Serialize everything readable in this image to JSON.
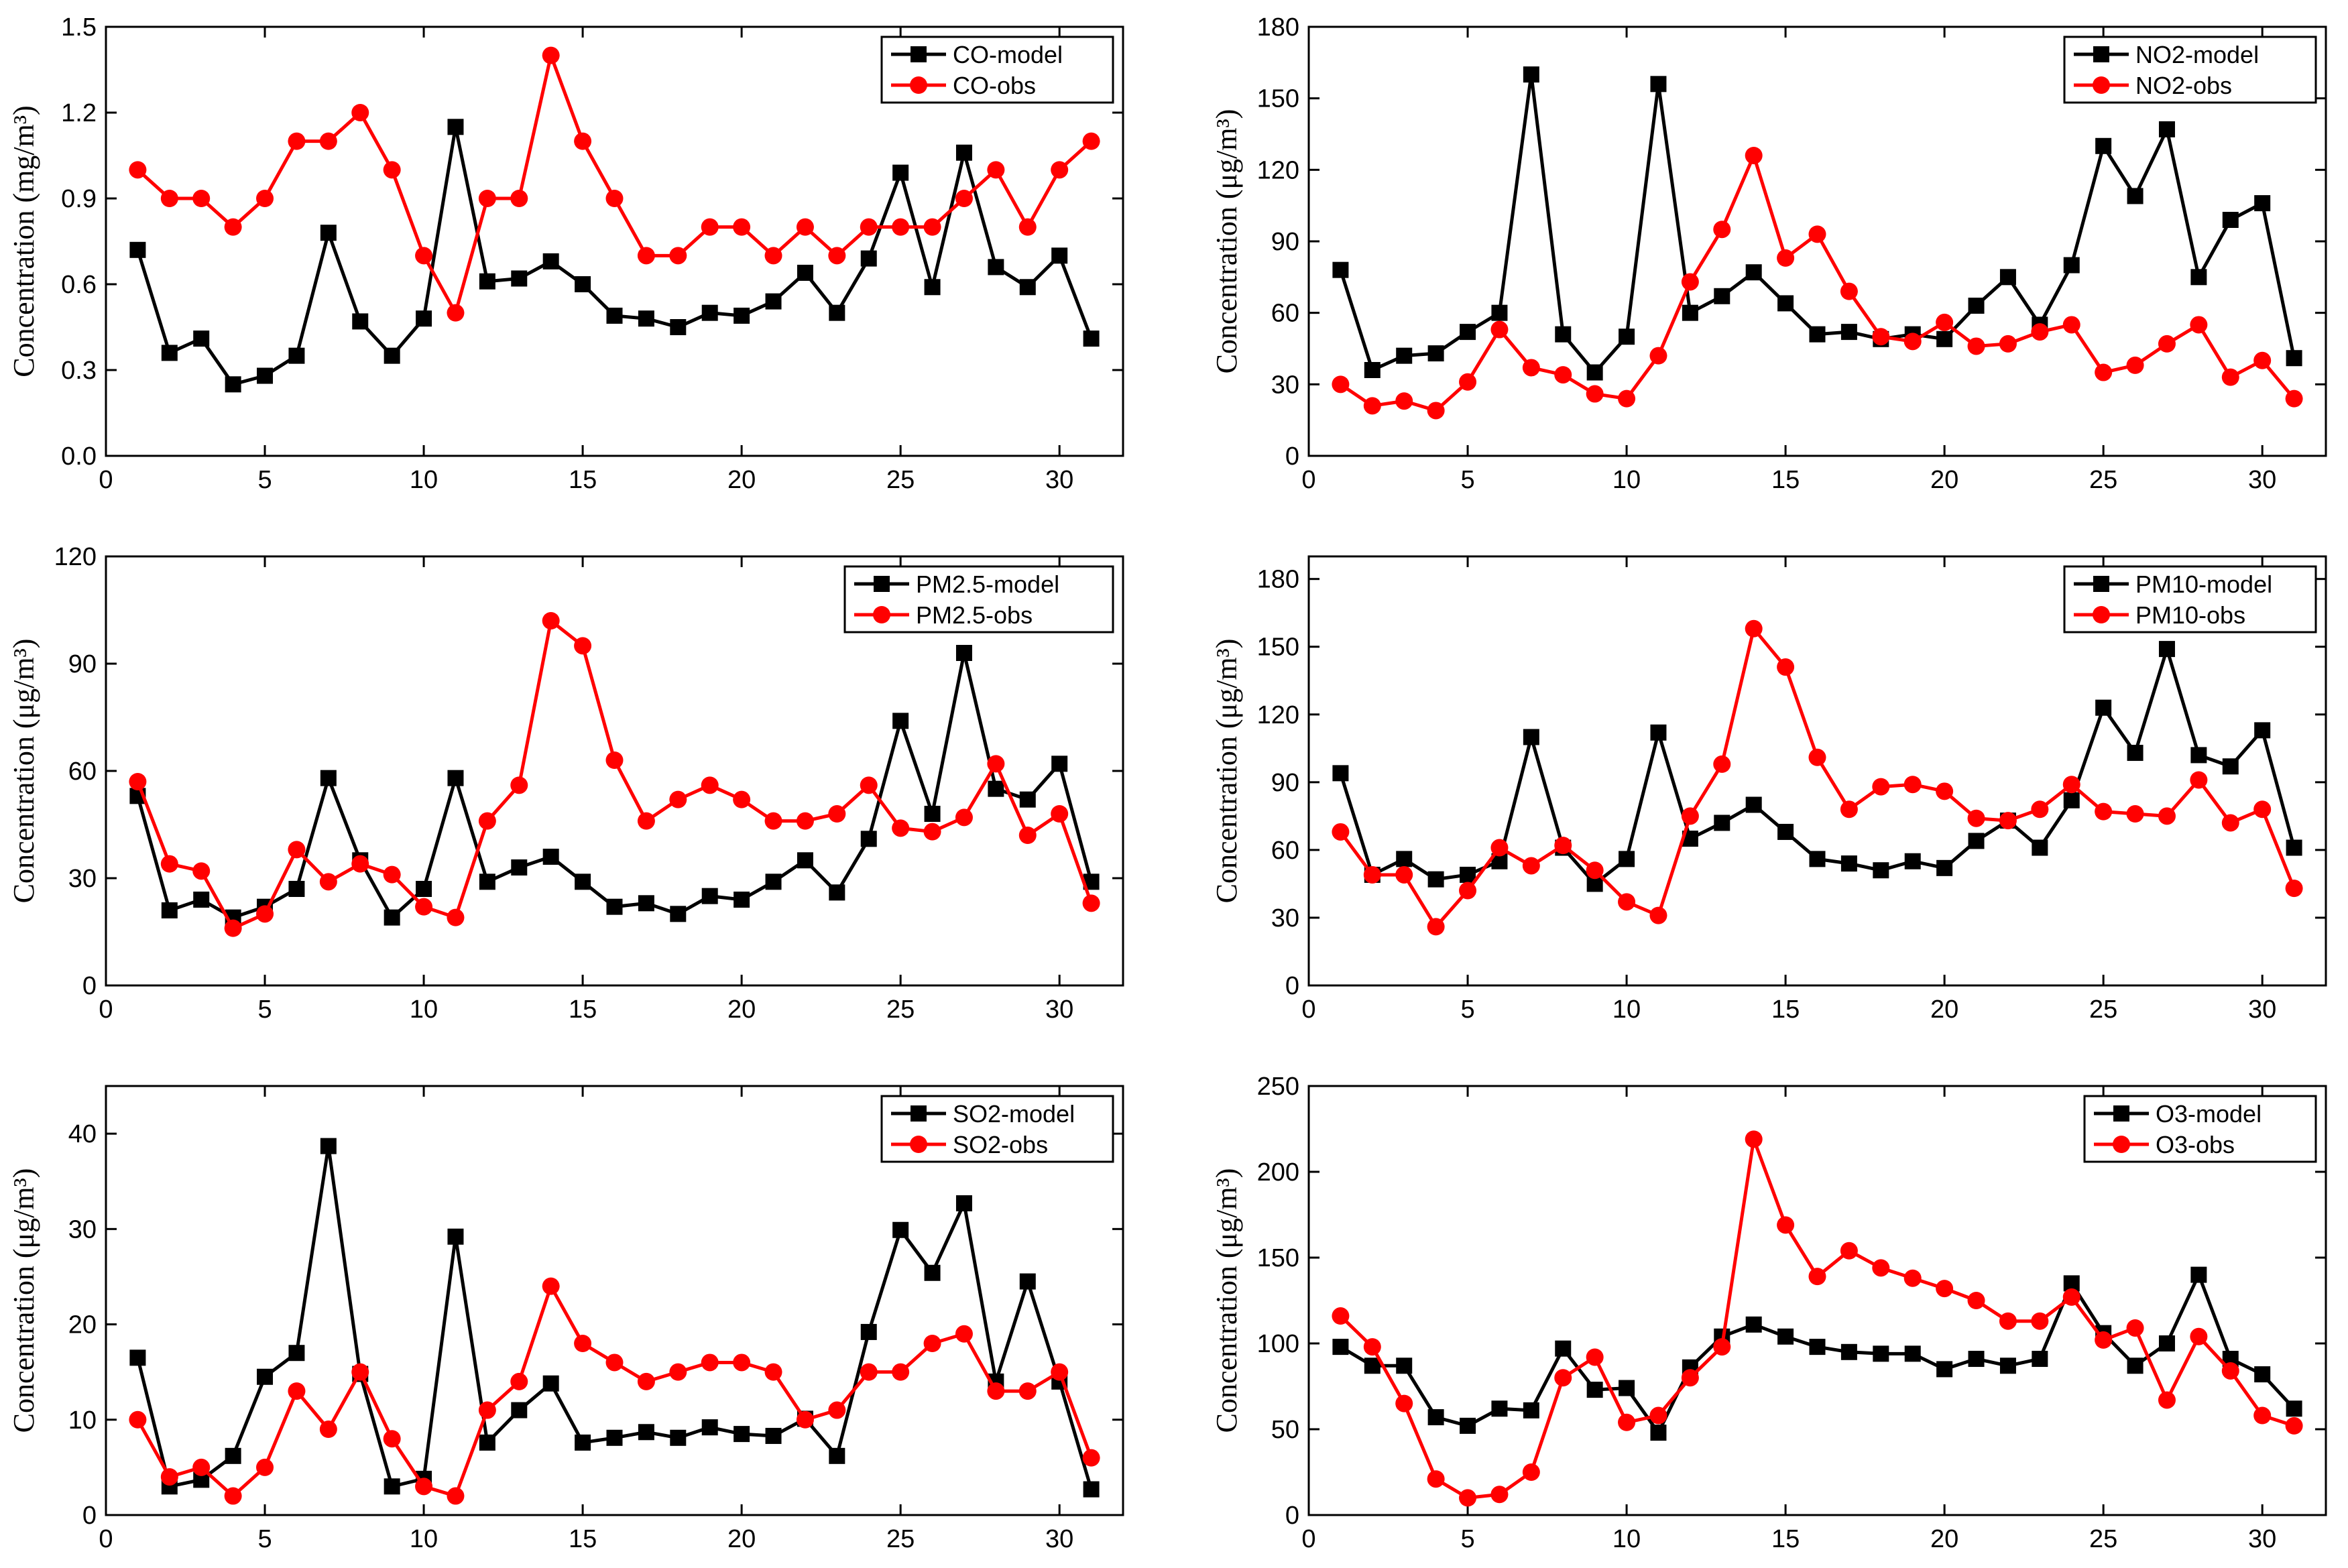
{
  "colors": {
    "model": "#000000",
    "obs": "#ff0000"
  },
  "chart_data": [
    {
      "type": "line",
      "ylabel": "Concentration (mg/m³)",
      "xlim": [
        0,
        32
      ],
      "ylim": [
        0,
        1.5
      ],
      "xticks": [
        0,
        5,
        10,
        15,
        20,
        25,
        30
      ],
      "xtick_labels": [
        "0",
        "5",
        "10",
        "15",
        "20",
        "25",
        "30"
      ],
      "yticks": [
        0,
        0.3,
        0.6,
        0.9,
        1.2,
        1.5
      ],
      "ytick_labels": [
        "0.0",
        "0.3",
        "0.6",
        "0.9",
        "1.2",
        "1.5"
      ],
      "legend": "top-right",
      "x": [
        1,
        2,
        3,
        4,
        5,
        6,
        7,
        8,
        9,
        10,
        11,
        12,
        13,
        14,
        15,
        16,
        17,
        18,
        19,
        20,
        21,
        22,
        23,
        24,
        25,
        26,
        27,
        28,
        29,
        30,
        31
      ],
      "series": [
        {
          "name": "CO-model",
          "marker": "square",
          "values": [
            0.72,
            0.36,
            0.41,
            0.25,
            0.28,
            0.35,
            0.78,
            0.47,
            0.35,
            0.48,
            1.15,
            0.61,
            0.62,
            0.68,
            0.6,
            0.49,
            0.48,
            0.45,
            0.5,
            0.49,
            0.54,
            0.64,
            0.5,
            0.69,
            0.99,
            0.59,
            1.06,
            0.66,
            0.59,
            0.7,
            0.41
          ]
        },
        {
          "name": "CO-obs",
          "marker": "circle",
          "values": [
            1.0,
            0.9,
            0.9,
            0.8,
            0.9,
            1.1,
            1.1,
            1.2,
            1.0,
            0.7,
            0.5,
            0.9,
            0.9,
            1.4,
            1.1,
            0.9,
            0.7,
            0.7,
            0.8,
            0.8,
            0.7,
            0.8,
            0.7,
            0.8,
            0.8,
            0.8,
            0.9,
            1.0,
            0.8,
            1.0,
            1.1
          ]
        }
      ]
    },
    {
      "type": "line",
      "ylabel": "Concentration (μg/m³)",
      "xlim": [
        0,
        32
      ],
      "ylim": [
        0,
        180
      ],
      "xticks": [
        0,
        5,
        10,
        15,
        20,
        25,
        30
      ],
      "xtick_labels": [
        "0",
        "5",
        "10",
        "15",
        "20",
        "25",
        "30"
      ],
      "yticks": [
        0,
        30,
        60,
        90,
        120,
        150,
        180
      ],
      "ytick_labels": [
        "0",
        "30",
        "60",
        "90",
        "120",
        "150",
        "180"
      ],
      "legend": "top-right",
      "x": [
        1,
        2,
        3,
        4,
        5,
        6,
        7,
        8,
        9,
        10,
        11,
        12,
        13,
        14,
        15,
        16,
        17,
        18,
        19,
        20,
        21,
        22,
        23,
        24,
        25,
        26,
        27,
        28,
        29,
        30,
        31
      ],
      "series": [
        {
          "name": "NO2-model",
          "marker": "square",
          "values": [
            78,
            36,
            42,
            43,
            52,
            60,
            160,
            51,
            35,
            50,
            156,
            60,
            67,
            77,
            64,
            51,
            52,
            49,
            51,
            49,
            63,
            75,
            55,
            80,
            130,
            109,
            137,
            75,
            99,
            106,
            41
          ]
        },
        {
          "name": "NO2-obs",
          "marker": "circle",
          "values": [
            30,
            21,
            23,
            19,
            31,
            53,
            37,
            34,
            26,
            24,
            42,
            73,
            95,
            126,
            83,
            93,
            69,
            50,
            48,
            56,
            46,
            47,
            52,
            55,
            35,
            38,
            47,
            55,
            33,
            40,
            24
          ]
        }
      ]
    },
    {
      "type": "line",
      "ylabel": "Concentration (μg/m³)",
      "xlim": [
        0,
        32
      ],
      "ylim": [
        0,
        120
      ],
      "xticks": [
        0,
        5,
        10,
        15,
        20,
        25,
        30
      ],
      "xtick_labels": [
        "0",
        "5",
        "10",
        "15",
        "20",
        "25",
        "30"
      ],
      "yticks": [
        0,
        30,
        60,
        90,
        120
      ],
      "ytick_labels": [
        "0",
        "30",
        "60",
        "90",
        "120"
      ],
      "legend": "top-right",
      "x": [
        1,
        2,
        3,
        4,
        5,
        6,
        7,
        8,
        9,
        10,
        11,
        12,
        13,
        14,
        15,
        16,
        17,
        18,
        19,
        20,
        21,
        22,
        23,
        24,
        25,
        26,
        27,
        28,
        29,
        30,
        31
      ],
      "series": [
        {
          "name": "PM2.5-model",
          "marker": "square",
          "values": [
            53,
            21,
            24,
            19,
            22,
            27,
            58,
            35,
            19,
            27,
            58,
            29,
            33,
            36,
            29,
            22,
            23,
            20,
            25,
            24,
            29,
            35,
            26,
            41,
            74,
            48,
            93,
            55,
            52,
            62,
            29
          ]
        },
        {
          "name": "PM2.5-obs",
          "marker": "circle",
          "values": [
            57,
            34,
            32,
            16,
            20,
            38,
            29,
            34,
            31,
            22,
            19,
            46,
            56,
            102,
            95,
            63,
            46,
            52,
            56,
            52,
            46,
            46,
            48,
            56,
            44,
            43,
            47,
            62,
            42,
            48,
            23
          ]
        }
      ]
    },
    {
      "type": "line",
      "ylabel": "Concentration (μg/m³)",
      "xlim": [
        0,
        32
      ],
      "ylim": [
        0,
        190
      ],
      "xticks": [
        0,
        5,
        10,
        15,
        20,
        25,
        30
      ],
      "xtick_labels": [
        "0",
        "5",
        "10",
        "15",
        "20",
        "25",
        "30"
      ],
      "yticks": [
        0,
        30,
        60,
        90,
        120,
        150,
        180
      ],
      "ytick_labels": [
        "0",
        "30",
        "60",
        "90",
        "120",
        "150",
        "180"
      ],
      "legend": "top-right",
      "x": [
        1,
        2,
        3,
        4,
        5,
        6,
        7,
        8,
        9,
        10,
        11,
        12,
        13,
        14,
        15,
        16,
        17,
        18,
        19,
        20,
        21,
        22,
        23,
        24,
        25,
        26,
        27,
        28,
        29,
        30,
        31
      ],
      "series": [
        {
          "name": "PM10-model",
          "marker": "square",
          "values": [
            94,
            49,
            56,
            47,
            49,
            55,
            110,
            61,
            45,
            56,
            112,
            65,
            72,
            80,
            68,
            56,
            54,
            51,
            55,
            52,
            64,
            73,
            61,
            82,
            123,
            103,
            149,
            102,
            97,
            113,
            61
          ]
        },
        {
          "name": "PM10-obs",
          "marker": "circle",
          "values": [
            68,
            49,
            49,
            26,
            42,
            61,
            53,
            62,
            51,
            37,
            31,
            75,
            98,
            158,
            141,
            101,
            78,
            88,
            89,
            86,
            74,
            73,
            78,
            89,
            77,
            76,
            75,
            91,
            72,
            78,
            43
          ]
        }
      ]
    },
    {
      "type": "line",
      "ylabel": "Concentration (μg/m³)",
      "xlim": [
        0,
        32
      ],
      "ylim": [
        0,
        45
      ],
      "xticks": [
        0,
        5,
        10,
        15,
        20,
        25,
        30
      ],
      "xtick_labels": [
        "0",
        "5",
        "10",
        "15",
        "20",
        "25",
        "30"
      ],
      "yticks": [
        0,
        10,
        20,
        30,
        40
      ],
      "ytick_labels": [
        "0",
        "10",
        "20",
        "30",
        "40"
      ],
      "legend": "top-right",
      "x": [
        1,
        2,
        3,
        4,
        5,
        6,
        7,
        8,
        9,
        10,
        11,
        12,
        13,
        14,
        15,
        16,
        17,
        18,
        19,
        20,
        21,
        22,
        23,
        24,
        25,
        26,
        27,
        28,
        29,
        30,
        31
      ],
      "series": [
        {
          "name": "SO2-model",
          "marker": "square",
          "values": [
            16.5,
            3,
            3.7,
            6.2,
            14.5,
            17,
            38.7,
            14.8,
            3,
            3.8,
            29.2,
            7.6,
            11,
            13.8,
            7.6,
            8.1,
            8.7,
            8.1,
            9.2,
            8.5,
            8.3,
            10.1,
            6.2,
            19.2,
            29.9,
            25.4,
            32.7,
            14,
            24.5,
            14,
            2.7
          ]
        },
        {
          "name": "SO2-obs",
          "marker": "circle",
          "values": [
            10,
            4,
            5,
            2,
            5,
            13,
            9,
            15,
            8,
            3,
            2,
            11,
            14,
            24,
            18,
            16,
            14,
            15,
            16,
            16,
            15,
            10,
            11,
            15,
            15,
            18,
            19,
            13,
            13,
            15,
            6
          ]
        }
      ]
    },
    {
      "type": "line",
      "ylabel": "Concentration (μg/m³)",
      "xlim": [
        0,
        32
      ],
      "ylim": [
        0,
        250
      ],
      "xticks": [
        0,
        5,
        10,
        15,
        20,
        25,
        30
      ],
      "xtick_labels": [
        "0",
        "5",
        "10",
        "15",
        "20",
        "25",
        "30"
      ],
      "yticks": [
        0,
        50,
        100,
        150,
        200,
        250
      ],
      "ytick_labels": [
        "0",
        "50",
        "100",
        "150",
        "200",
        "250"
      ],
      "legend": "top-right",
      "x": [
        1,
        2,
        3,
        4,
        5,
        6,
        7,
        8,
        9,
        10,
        11,
        12,
        13,
        14,
        15,
        16,
        17,
        18,
        19,
        20,
        21,
        22,
        23,
        24,
        25,
        26,
        27,
        28,
        29,
        30,
        31
      ],
      "series": [
        {
          "name": "O3-model",
          "marker": "square",
          "values": [
            98,
            87,
            87,
            57,
            52,
            62,
            61,
            97,
            73,
            74,
            48,
            86,
            104,
            111,
            104,
            98,
            95,
            94,
            94,
            85,
            91,
            87,
            91,
            135,
            106,
            87,
            100,
            140,
            91,
            82,
            62
          ]
        },
        {
          "name": "O3-obs",
          "marker": "circle",
          "values": [
            116,
            98,
            65,
            21,
            10,
            12,
            25,
            80,
            92,
            54,
            58,
            80,
            98,
            219,
            169,
            139,
            154,
            144,
            138,
            132,
            125,
            113,
            113,
            127,
            102,
            109,
            67,
            104,
            84,
            58,
            52
          ]
        }
      ]
    }
  ]
}
